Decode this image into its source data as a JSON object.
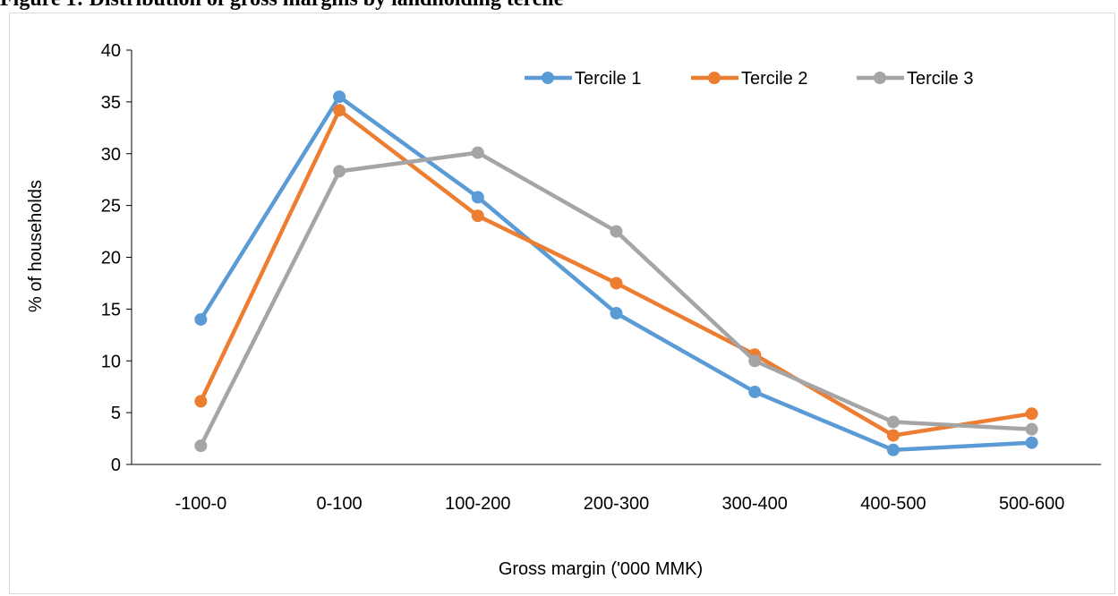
{
  "figure_title": "Figure 1: Distribution of gross margins by landholding tercile",
  "chart_data": {
    "type": "line",
    "categories": [
      "-100-0",
      "0-100",
      "100-200",
      "200-300",
      "300-400",
      "400-500",
      "500-600"
    ],
    "series": [
      {
        "name": "Tercile 1",
        "color": "#5b9bd5",
        "values": [
          14.0,
          35.5,
          25.8,
          14.6,
          7.0,
          1.4,
          2.1
        ]
      },
      {
        "name": "Tercile 2",
        "color": "#ed7d31",
        "values": [
          6.1,
          34.2,
          24.0,
          17.5,
          10.6,
          2.8,
          4.9
        ]
      },
      {
        "name": "Tercile 3",
        "color": "#a5a5a5",
        "values": [
          1.8,
          28.3,
          30.1,
          22.5,
          10.0,
          4.1,
          3.4
        ]
      }
    ],
    "xlabel": "Gross margin ('000 MMK)",
    "ylabel": "% of households",
    "ylim": [
      0,
      40
    ],
    "yticks": [
      "0",
      "5",
      "10",
      "15",
      "20",
      "25",
      "30",
      "35",
      "40"
    ],
    "grid": false,
    "legend_position": "top-right"
  }
}
